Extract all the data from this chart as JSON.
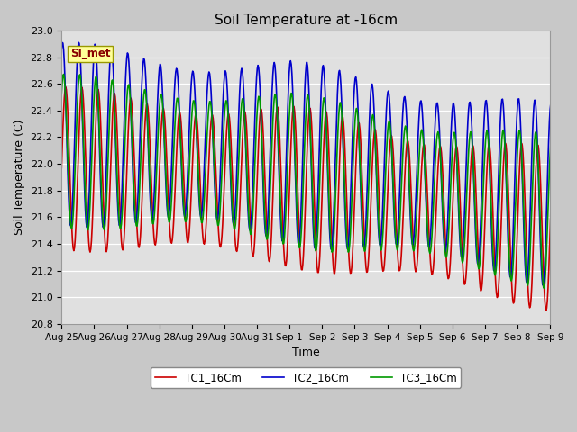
{
  "title": "Soil Temperature at -16cm",
  "xlabel": "Time",
  "ylabel": "Soil Temperature (C)",
  "ylim": [
    20.8,
    23.0
  ],
  "yticks": [
    20.8,
    21.0,
    21.2,
    21.4,
    21.6,
    21.8,
    22.0,
    22.2,
    22.4,
    22.6,
    22.8,
    23.0
  ],
  "xtick_labels": [
    "Aug 25",
    "Aug 26",
    "Aug 27",
    "Aug 28",
    "Aug 29",
    "Aug 30",
    "Aug 31",
    "Sep 1",
    "Sep 2",
    "Sep 3",
    "Sep 4",
    "Sep 5",
    "Sep 6",
    "Sep 7",
    "Sep 8",
    "Sep 9"
  ],
  "fig_bg_color": "#c8c8c8",
  "plot_bg_color": "#e0e0e0",
  "grid_color": "#ffffff",
  "line_colors": [
    "#cc0000",
    "#0000cc",
    "#009900"
  ],
  "line_width": 1.2,
  "legend_labels": [
    "TC1_16Cm",
    "TC2_16Cm",
    "TC3_16Cm"
  ],
  "annotation_text": "SI_met",
  "annotation_bg": "#ffff99",
  "annotation_border": "#999900",
  "title_fontsize": 11,
  "axis_label_fontsize": 9,
  "tick_fontsize": 8
}
